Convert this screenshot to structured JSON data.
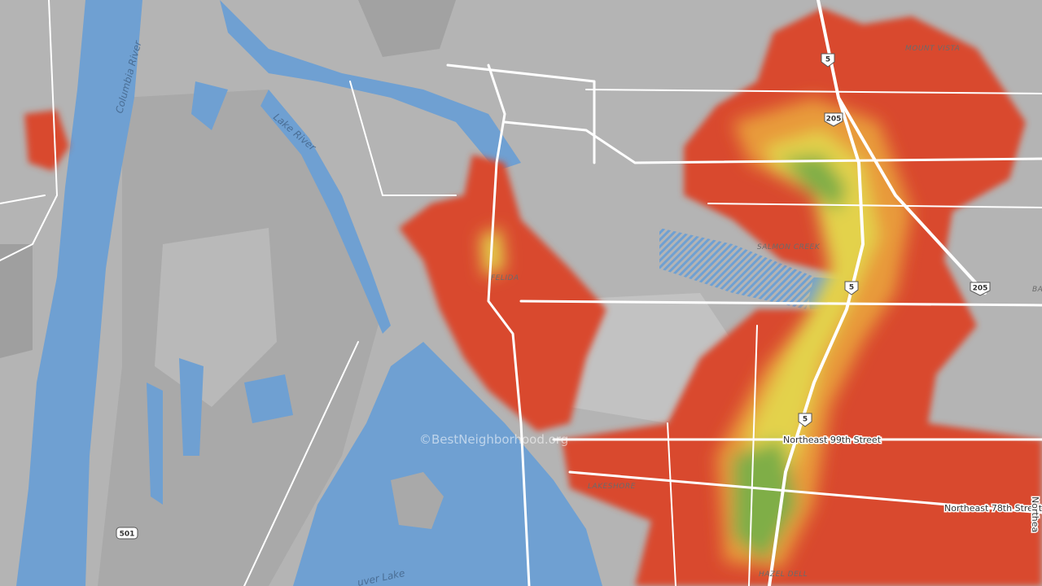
{
  "map": {
    "water_labels": [
      "Columbia River",
      "Lake River",
      "uver Lake"
    ],
    "place_labels": [
      "MOUNT VISTA",
      "SALMON CREEK",
      "FELIDA",
      "LAKESHORE",
      "HAZEL DELL"
    ],
    "road_labels": [
      "Northeast 99th Street",
      "Northeast 78th Street",
      "Northea"
    ],
    "shields": [
      "5",
      "205",
      "5",
      "205",
      "5",
      "501"
    ],
    "edge_labels": [
      "BA"
    ],
    "watermark": "©BestNeighborhood.org"
  }
}
